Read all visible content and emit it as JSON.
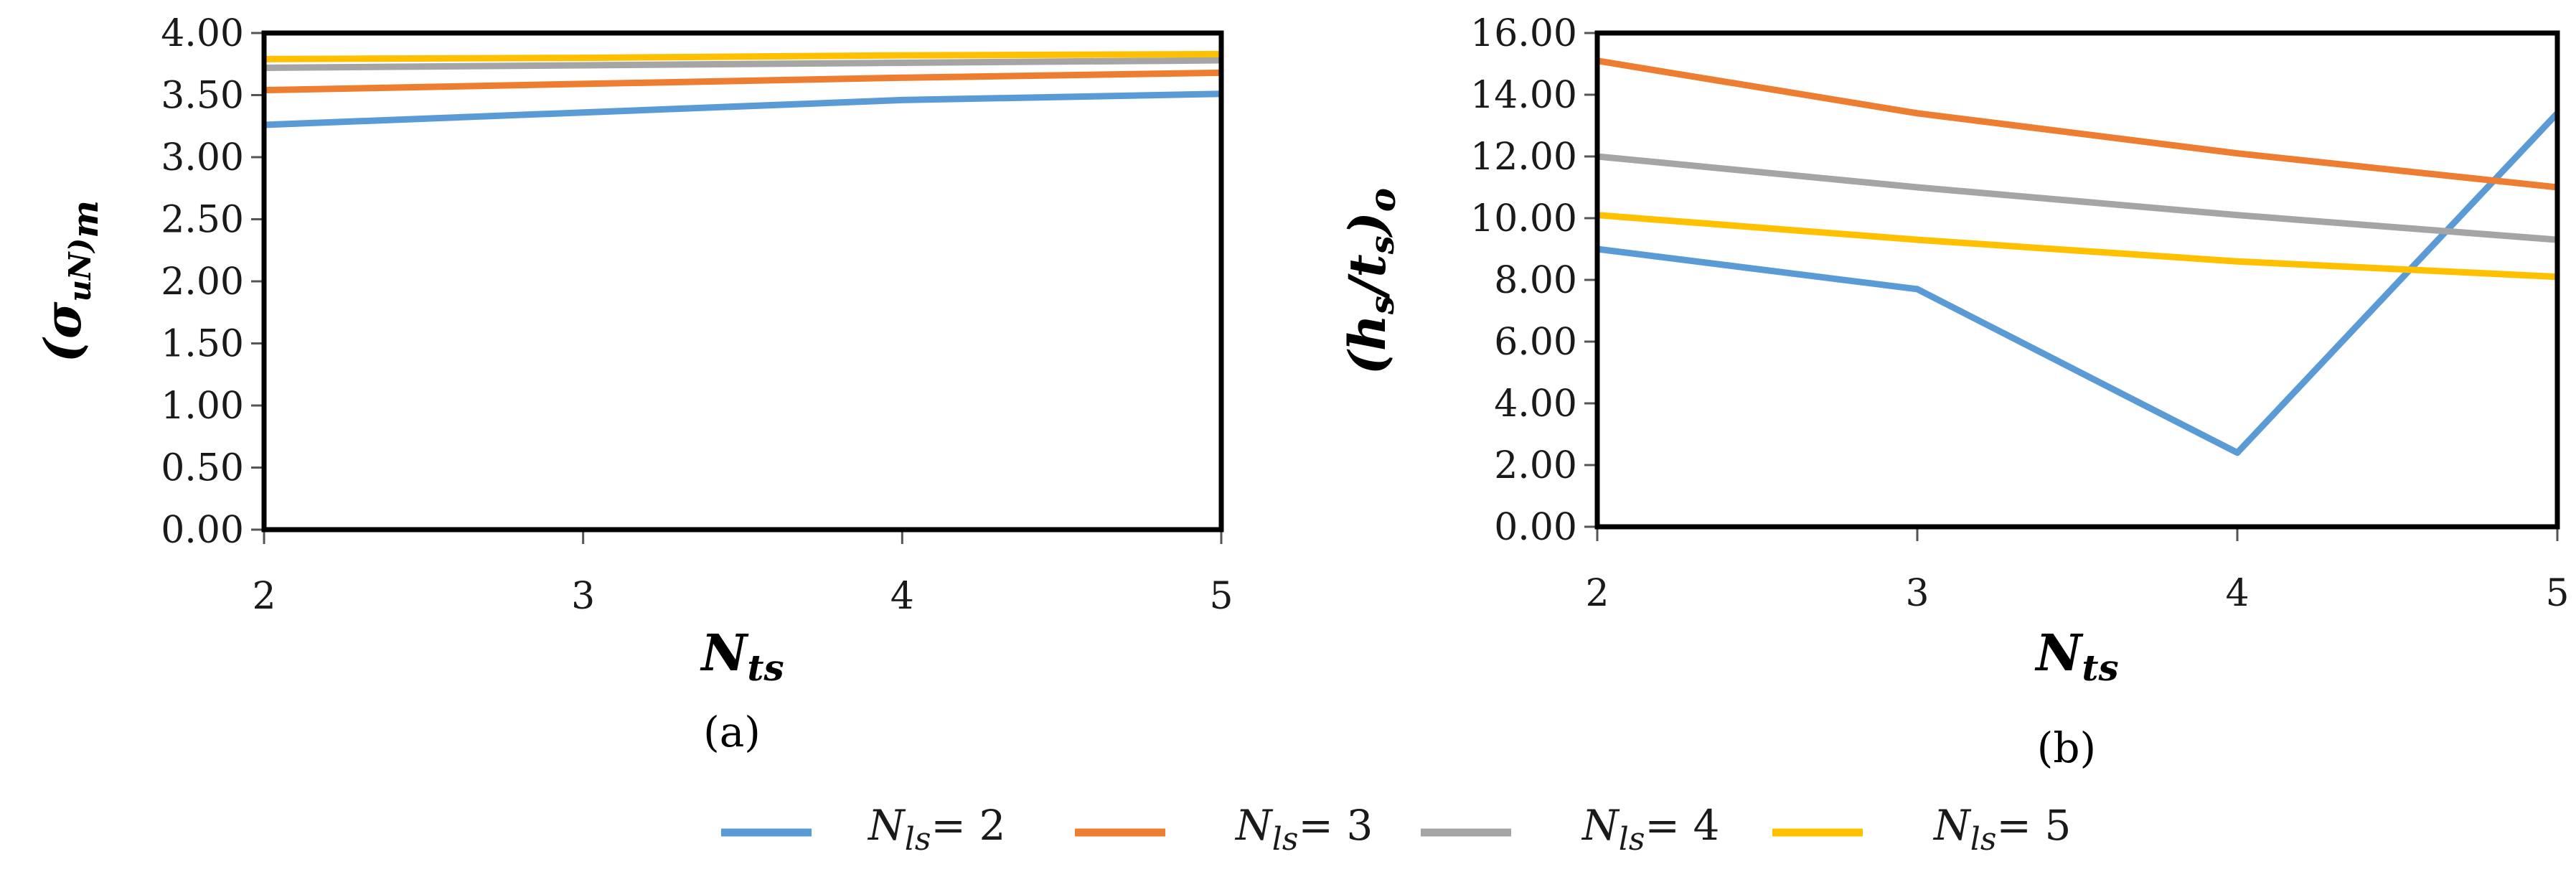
{
  "chart_data": [
    {
      "type": "line",
      "panel_label": "(a)",
      "xlabel": "N",
      "xlabel_sub": "ts",
      "ylabel": "(σ",
      "ylabel_sub": "uN)",
      "ylabel_tail": "m",
      "x": [
        2,
        3,
        4,
        5
      ],
      "x_ticks": [
        "2",
        "3",
        "4",
        "5"
      ],
      "ylim": [
        0,
        4
      ],
      "y_ticks": [
        "0.00",
        "0.50",
        "1.00",
        "1.50",
        "2.00",
        "2.50",
        "3.00",
        "3.50",
        "4.00"
      ],
      "series": [
        {
          "name": "N_ls = 2",
          "color": "#5B9BD5",
          "values": [
            3.26,
            3.36,
            3.46,
            3.51
          ]
        },
        {
          "name": "N_ls = 3",
          "color": "#ED7D31",
          "values": [
            3.54,
            3.59,
            3.64,
            3.68
          ]
        },
        {
          "name": "N_ls = 4",
          "color": "#A5A5A5",
          "values": [
            3.72,
            3.74,
            3.76,
            3.78
          ]
        },
        {
          "name": "N_ls = 5",
          "color": "#FFC000",
          "values": [
            3.79,
            3.8,
            3.82,
            3.83
          ]
        }
      ]
    },
    {
      "type": "line",
      "panel_label": "(b)",
      "xlabel": "N",
      "xlabel_sub": "ts",
      "ylabel": "(h",
      "ylabel_sub": "s",
      "ylabel_mid": "/t",
      "ylabel_sub2": "s",
      "ylabel_close": ")",
      "ylabel_tail": "o",
      "x": [
        2,
        3,
        4,
        5
      ],
      "x_ticks": [
        "2",
        "3",
        "4",
        "5"
      ],
      "ylim": [
        0,
        16
      ],
      "y_ticks": [
        "0.00",
        "2.00",
        "4.00",
        "6.00",
        "8.00",
        "10.00",
        "12.00",
        "14.00",
        "16.00"
      ],
      "series": [
        {
          "name": "N_ls = 2",
          "color": "#5B9BD5",
          "values": [
            9.0,
            7.7,
            2.4,
            13.4
          ]
        },
        {
          "name": "N_ls = 3",
          "color": "#ED7D31",
          "values": [
            15.1,
            13.4,
            12.1,
            11.0
          ]
        },
        {
          "name": "N_ls = 4",
          "color": "#A5A5A5",
          "values": [
            12.0,
            11.0,
            10.1,
            9.3
          ]
        },
        {
          "name": "N_ls = 5",
          "color": "#FFC000",
          "values": [
            10.1,
            9.3,
            8.6,
            8.1
          ]
        }
      ]
    }
  ],
  "legend": {
    "placement": "bottom",
    "items": [
      {
        "var": "N",
        "sub": "ls",
        "eq": "= 2",
        "color": "#5B9BD5"
      },
      {
        "var": "N",
        "sub": "ls",
        "eq": "= 3",
        "color": "#ED7D31"
      },
      {
        "var": "N",
        "sub": "ls",
        "eq": "= 4",
        "color": "#A5A5A5"
      },
      {
        "var": "N",
        "sub": "ls",
        "eq": "= 5",
        "color": "#FFC000"
      }
    ]
  }
}
